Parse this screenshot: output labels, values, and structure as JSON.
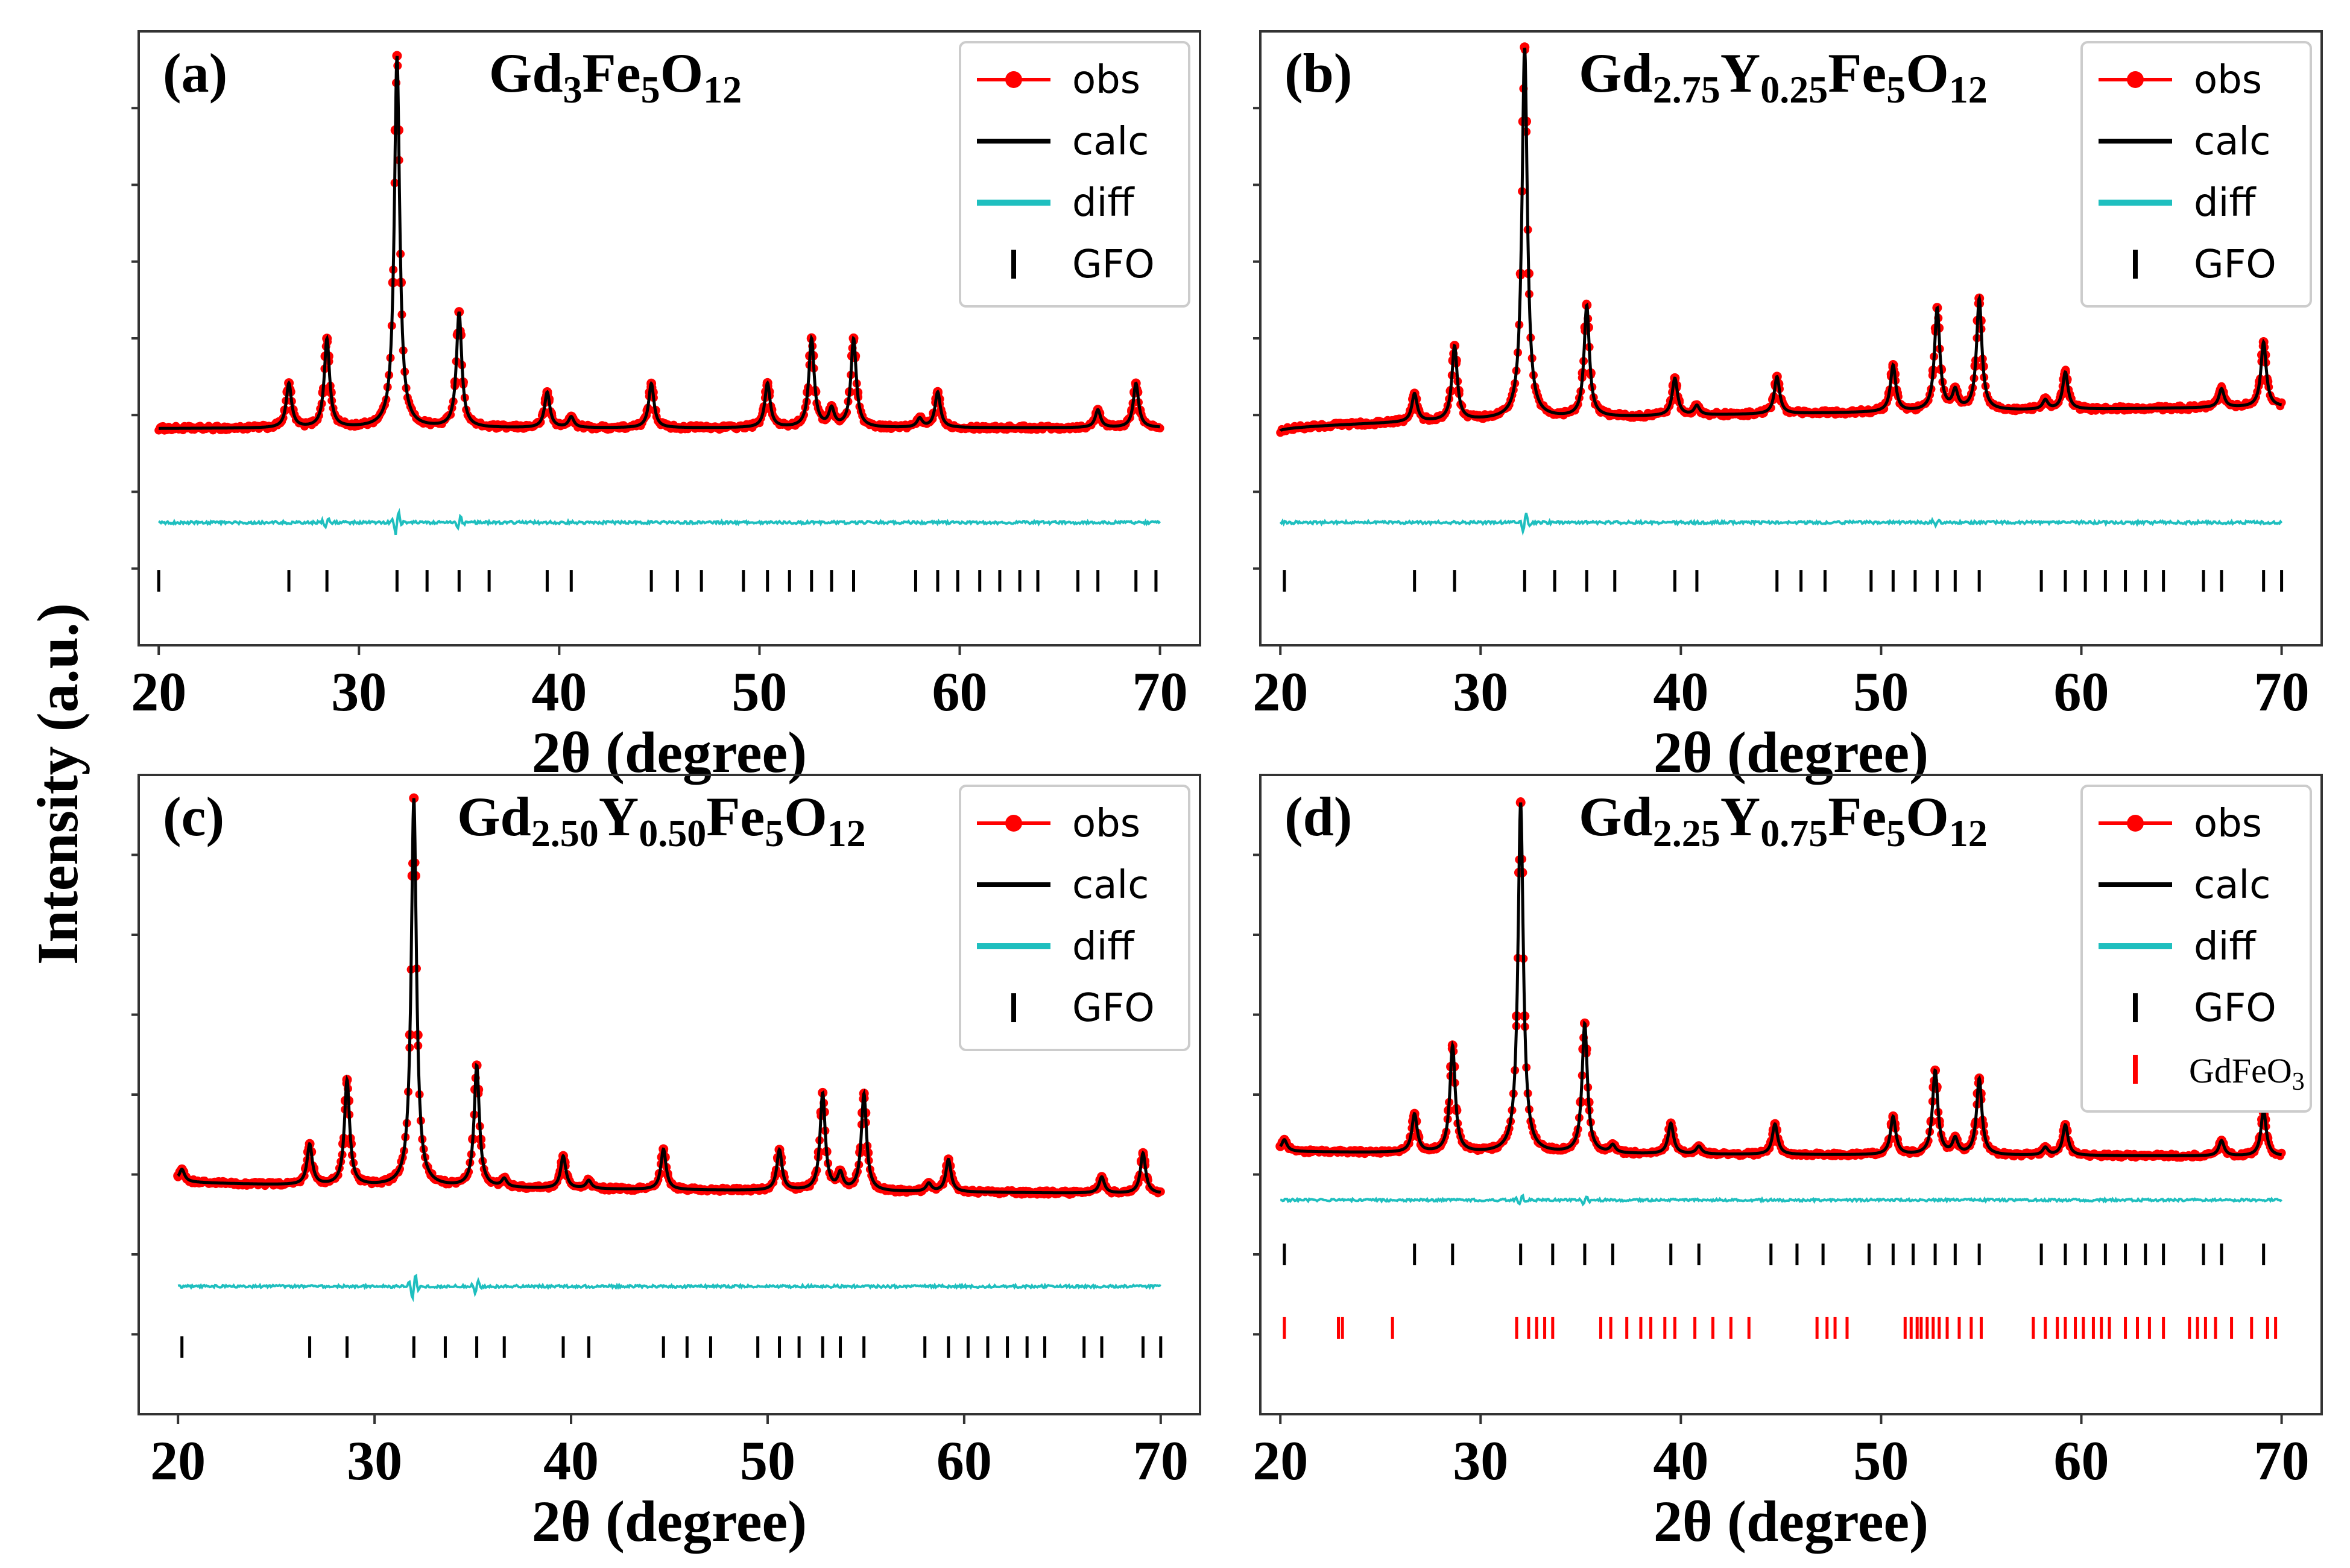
{
  "figure": {
    "ylabel": "Intensity (a.u.)",
    "colors": {
      "obs": "#ff0000",
      "calc": "#000000",
      "diff": "#1fbfbf",
      "gfo_tick": "#000000",
      "gdfeo3_tick": "#ff0000"
    }
  },
  "chart_data": [
    {
      "type": "line",
      "panel": "(a)",
      "title": {
        "parts": [
          [
            "Gd",
            ""
          ],
          [
            "3",
            "sub"
          ],
          [
            "Fe",
            ""
          ],
          [
            "5",
            "sub"
          ],
          [
            "O",
            ""
          ],
          [
            "12",
            "sub"
          ]
        ]
      },
      "xlabel": "2θ (degree)",
      "xlim": [
        19,
        72
      ],
      "xticks": [
        "20",
        "30",
        "40",
        "50",
        "60",
        "70"
      ],
      "legend": {
        "position": "top-right",
        "entries": [
          "obs",
          "calc",
          "diff",
          "GFO"
        ]
      },
      "background": {
        "start": 0.9,
        "end": 1.0
      },
      "peaks": [
        [
          26.5,
          5
        ],
        [
          28.4,
          10
        ],
        [
          31.9,
          42
        ],
        [
          35.0,
          13
        ],
        [
          39.4,
          4
        ],
        [
          40.6,
          1.2
        ],
        [
          44.6,
          5
        ],
        [
          50.4,
          5
        ],
        [
          52.6,
          10
        ],
        [
          53.6,
          2
        ],
        [
          54.7,
          10
        ],
        [
          58.0,
          1
        ],
        [
          58.9,
          4
        ],
        [
          66.9,
          2
        ],
        [
          68.8,
          5
        ]
      ],
      "diff_spikes": [
        [
          28.4,
          0.6
        ],
        [
          31.9,
          1.6
        ],
        [
          35.0,
          0.8
        ]
      ],
      "gfo_ticks": [
        20.0,
        26.5,
        28.4,
        31.9,
        33.4,
        35.0,
        36.5,
        39.4,
        40.6,
        44.6,
        45.9,
        47.1,
        49.2,
        50.4,
        51.5,
        52.6,
        53.6,
        54.7,
        57.8,
        58.9,
        59.9,
        61.0,
        62.0,
        63.0,
        63.9,
        65.9,
        66.9,
        68.8,
        69.8
      ]
    },
    {
      "type": "line",
      "panel": "(b)",
      "title": {
        "parts": [
          [
            "Gd",
            ""
          ],
          [
            "2.75",
            "sub"
          ],
          [
            "Y",
            ""
          ],
          [
            "0.25",
            "sub"
          ],
          [
            "Fe",
            ""
          ],
          [
            "5",
            "sub"
          ],
          [
            "O",
            ""
          ],
          [
            "12",
            "sub"
          ]
        ]
      },
      "xlabel": "2θ (degree)",
      "xlim": [
        19,
        72
      ],
      "xticks": [
        "20",
        "30",
        "40",
        "50",
        "60",
        "70"
      ],
      "legend": {
        "position": "top-right",
        "entries": [
          "obs",
          "calc",
          "diff",
          "GFO"
        ]
      },
      "background": {
        "start": 0.6,
        "end": 3.2
      },
      "peaks": [
        [
          26.7,
          3
        ],
        [
          28.7,
          8
        ],
        [
          32.2,
          40
        ],
        [
          35.3,
          12
        ],
        [
          39.7,
          4
        ],
        [
          40.8,
          1
        ],
        [
          44.8,
          4
        ],
        [
          50.6,
          5
        ],
        [
          52.8,
          11
        ],
        [
          53.7,
          2
        ],
        [
          54.9,
          12
        ],
        [
          58.2,
          1
        ],
        [
          59.2,
          4
        ],
        [
          67.0,
          2
        ],
        [
          69.1,
          7
        ]
      ],
      "diff_spikes": [
        [
          32.2,
          1.2
        ],
        [
          52.8,
          0.5
        ]
      ],
      "gfo_ticks": [
        20.2,
        26.7,
        28.7,
        32.2,
        33.7,
        35.3,
        36.7,
        39.7,
        40.8,
        44.8,
        46.0,
        47.2,
        49.5,
        50.6,
        51.7,
        52.8,
        53.7,
        54.9,
        58.0,
        59.2,
        60.2,
        61.2,
        62.2,
        63.2,
        64.1,
        66.1,
        67.0,
        69.1,
        70.0
      ]
    },
    {
      "type": "line",
      "panel": "(c)",
      "title": {
        "parts": [
          [
            "Gd",
            ""
          ],
          [
            "2.50",
            "sub"
          ],
          [
            "Y",
            ""
          ],
          [
            "0.50",
            "sub"
          ],
          [
            "Fe",
            ""
          ],
          [
            "5",
            "sub"
          ],
          [
            "O",
            ""
          ],
          [
            "12",
            "sub"
          ]
        ]
      },
      "xlabel": "2θ (degree)",
      "xlim": [
        18,
        72
      ],
      "xticks": [
        "20",
        "30",
        "40",
        "50",
        "60",
        "70"
      ],
      "legend": {
        "position": "top-right",
        "entries": [
          "obs",
          "calc",
          "diff",
          "GFO"
        ]
      },
      "background": {
        "start": 2.0,
        "end": 0.4
      },
      "peaks": [
        [
          20.2,
          1.5
        ],
        [
          26.7,
          5
        ],
        [
          28.6,
          13
        ],
        [
          32.0,
          48
        ],
        [
          35.2,
          15
        ],
        [
          36.6,
          1
        ],
        [
          39.6,
          4
        ],
        [
          40.9,
          1
        ],
        [
          44.7,
          5
        ],
        [
          50.6,
          5
        ],
        [
          52.8,
          12
        ],
        [
          53.7,
          2
        ],
        [
          54.9,
          12
        ],
        [
          58.2,
          1
        ],
        [
          59.2,
          4
        ],
        [
          67.0,
          2
        ],
        [
          69.1,
          5
        ]
      ],
      "diff_spikes": [
        [
          32.0,
          1.8
        ],
        [
          35.2,
          1.0
        ]
      ],
      "gfo_ticks": [
        20.2,
        26.7,
        28.6,
        32.0,
        33.6,
        35.2,
        36.6,
        39.6,
        40.9,
        44.7,
        45.9,
        47.1,
        49.5,
        50.6,
        51.6,
        52.8,
        53.7,
        54.9,
        58.0,
        59.2,
        60.2,
        61.2,
        62.2,
        63.2,
        64.1,
        66.1,
        67.0,
        69.1,
        70.0
      ]
    },
    {
      "type": "line",
      "panel": "(d)",
      "title": {
        "parts": [
          [
            "Gd",
            ""
          ],
          [
            "2.25",
            "sub"
          ],
          [
            "Y",
            ""
          ],
          [
            "0.75",
            "sub"
          ],
          [
            "Fe",
            ""
          ],
          [
            "5",
            "sub"
          ],
          [
            "O",
            ""
          ],
          [
            "12",
            "sub"
          ]
        ]
      },
      "xlabel": "2θ (degree)",
      "xlim": [
        19,
        72
      ],
      "xticks": [
        "20",
        "30",
        "40",
        "50",
        "60",
        "70"
      ],
      "legend": {
        "position": "top-right",
        "entries": [
          "obs",
          "calc",
          "diff",
          "GFO",
          "GdFeO3"
        ]
      },
      "background": {
        "start": 1.0,
        "end": 0.3
      },
      "peaks": [
        [
          20.2,
          1.5
        ],
        [
          26.7,
          5
        ],
        [
          28.6,
          14
        ],
        [
          32.0,
          46
        ],
        [
          35.2,
          17
        ],
        [
          36.6,
          1
        ],
        [
          39.5,
          4
        ],
        [
          40.9,
          1
        ],
        [
          44.7,
          4
        ],
        [
          50.6,
          5
        ],
        [
          52.7,
          11
        ],
        [
          53.7,
          2
        ],
        [
          54.9,
          10
        ],
        [
          58.2,
          1
        ],
        [
          59.2,
          4
        ],
        [
          67.0,
          2
        ],
        [
          69.1,
          6
        ]
      ],
      "diff_spikes": [
        [
          32.0,
          0.8
        ],
        [
          35.2,
          0.6
        ]
      ],
      "gfo_ticks": [
        20.2,
        26.7,
        28.6,
        32.0,
        33.6,
        35.2,
        36.6,
        39.5,
        40.9,
        44.5,
        45.8,
        47.1,
        49.4,
        50.6,
        51.6,
        52.7,
        53.7,
        54.9,
        58.0,
        59.2,
        60.2,
        61.2,
        62.2,
        63.2,
        64.1,
        66.1,
        67.0,
        69.1
      ],
      "gdfeo3_ticks": [
        20.2,
        22.9,
        23.1,
        25.6,
        31.8,
        32.4,
        32.8,
        33.2,
        33.6,
        36.0,
        36.5,
        37.3,
        38.0,
        38.5,
        39.2,
        39.7,
        40.7,
        41.6,
        42.5,
        43.4,
        46.8,
        47.3,
        47.7,
        48.3,
        51.2,
        51.5,
        51.8,
        52.0,
        52.3,
        52.6,
        52.9,
        53.3,
        53.9,
        54.5,
        55.0,
        57.6,
        58.2,
        58.8,
        59.2,
        59.7,
        60.1,
        60.6,
        61.0,
        61.4,
        62.2,
        62.8,
        63.4,
        64.1,
        65.4,
        65.8,
        66.2,
        66.7,
        67.5,
        68.5,
        69.3,
        69.7
      ]
    }
  ]
}
